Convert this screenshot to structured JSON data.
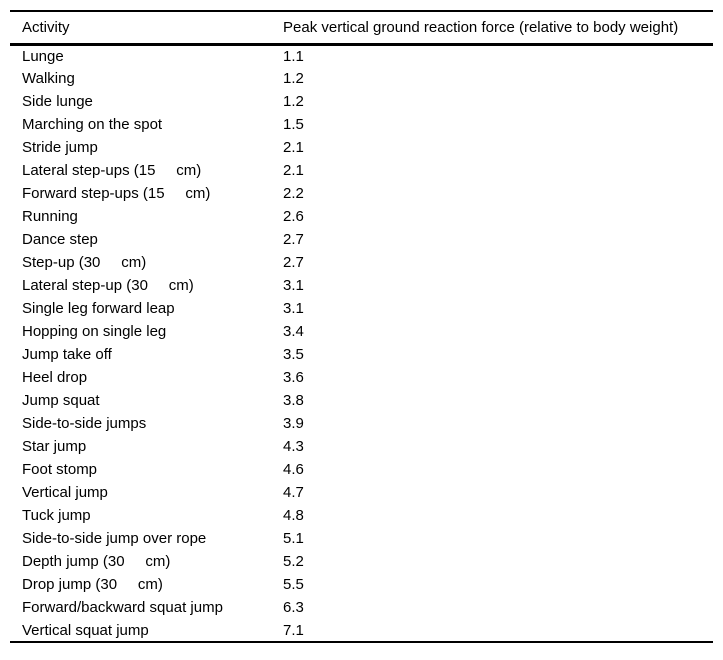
{
  "colors": {
    "background": "#ffffff",
    "text": "#000000",
    "rule": "#000000"
  },
  "table": {
    "header": {
      "activity": "Activity",
      "force": "Peak vertical ground reaction force (relative to body weight)"
    },
    "rows": [
      [
        "Lunge",
        "1.1"
      ],
      [
        "Walking",
        "1.2"
      ],
      [
        "Side lunge",
        "1.2"
      ],
      [
        "Marching on the spot",
        "1.5"
      ],
      [
        "Stride jump",
        "2.1"
      ],
      [
        "Lateral step-ups (15     cm)",
        "2.1"
      ],
      [
        "Forward step-ups (15     cm)",
        "2.2"
      ],
      [
        "Running",
        "2.6"
      ],
      [
        "Dance step",
        "2.7"
      ],
      [
        "Step-up (30     cm)",
        "2.7"
      ],
      [
        "Lateral step-up (30     cm)",
        "3.1"
      ],
      [
        "Single leg forward leap",
        "3.1"
      ],
      [
        "Hopping on single leg",
        "3.4"
      ],
      [
        "Jump take off",
        "3.5"
      ],
      [
        "Heel drop",
        "3.6"
      ],
      [
        "Jump squat",
        "3.8"
      ],
      [
        "Side-to-side jumps",
        "3.9"
      ],
      [
        "Star jump",
        "4.3"
      ],
      [
        "Foot stomp",
        "4.6"
      ],
      [
        "Vertical jump",
        "4.7"
      ],
      [
        "Tuck jump",
        "4.8"
      ],
      [
        "Side-to-side jump over rope",
        "5.1"
      ],
      [
        "Depth jump (30     cm)",
        "5.2"
      ],
      [
        "Drop jump (30     cm)",
        "5.5"
      ],
      [
        "Forward/backward squat jump",
        "6.3"
      ],
      [
        "Vertical squat jump",
        "7.1"
      ]
    ]
  }
}
